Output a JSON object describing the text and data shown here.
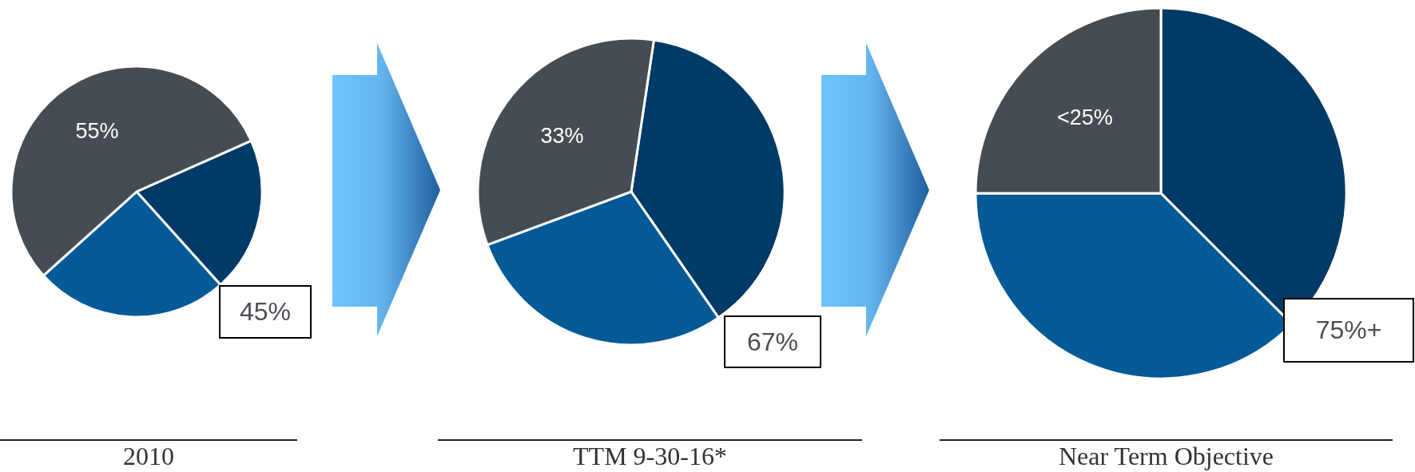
{
  "chart_data": [
    {
      "type": "pie",
      "title": "2010",
      "categories": [
        null,
        null,
        null
      ],
      "values": [
        20,
        25,
        55
      ],
      "colors": [
        "#003a66",
        "#045a96",
        "#454d53"
      ],
      "value_labels": [
        null,
        null,
        "55%"
      ],
      "annotations": [
        "45%"
      ]
    },
    {
      "type": "pie",
      "title": "TTM 9-30-16*",
      "categories": [
        null,
        null,
        null
      ],
      "values": [
        38,
        29,
        33
      ],
      "colors": [
        "#003a66",
        "#045a96",
        "#454d53"
      ],
      "value_labels": [
        null,
        null,
        "33%"
      ],
      "annotations": [
        "67%"
      ]
    },
    {
      "type": "pie",
      "title": "Near Term Objective",
      "categories": [
        null,
        null,
        null
      ],
      "values": [
        37.5,
        37.5,
        25
      ],
      "colors": [
        "#003a66",
        "#045a96",
        "#454d53"
      ],
      "value_labels": [
        null,
        null,
        "<25%"
      ],
      "annotations": [
        "75%+"
      ]
    }
  ]
}
